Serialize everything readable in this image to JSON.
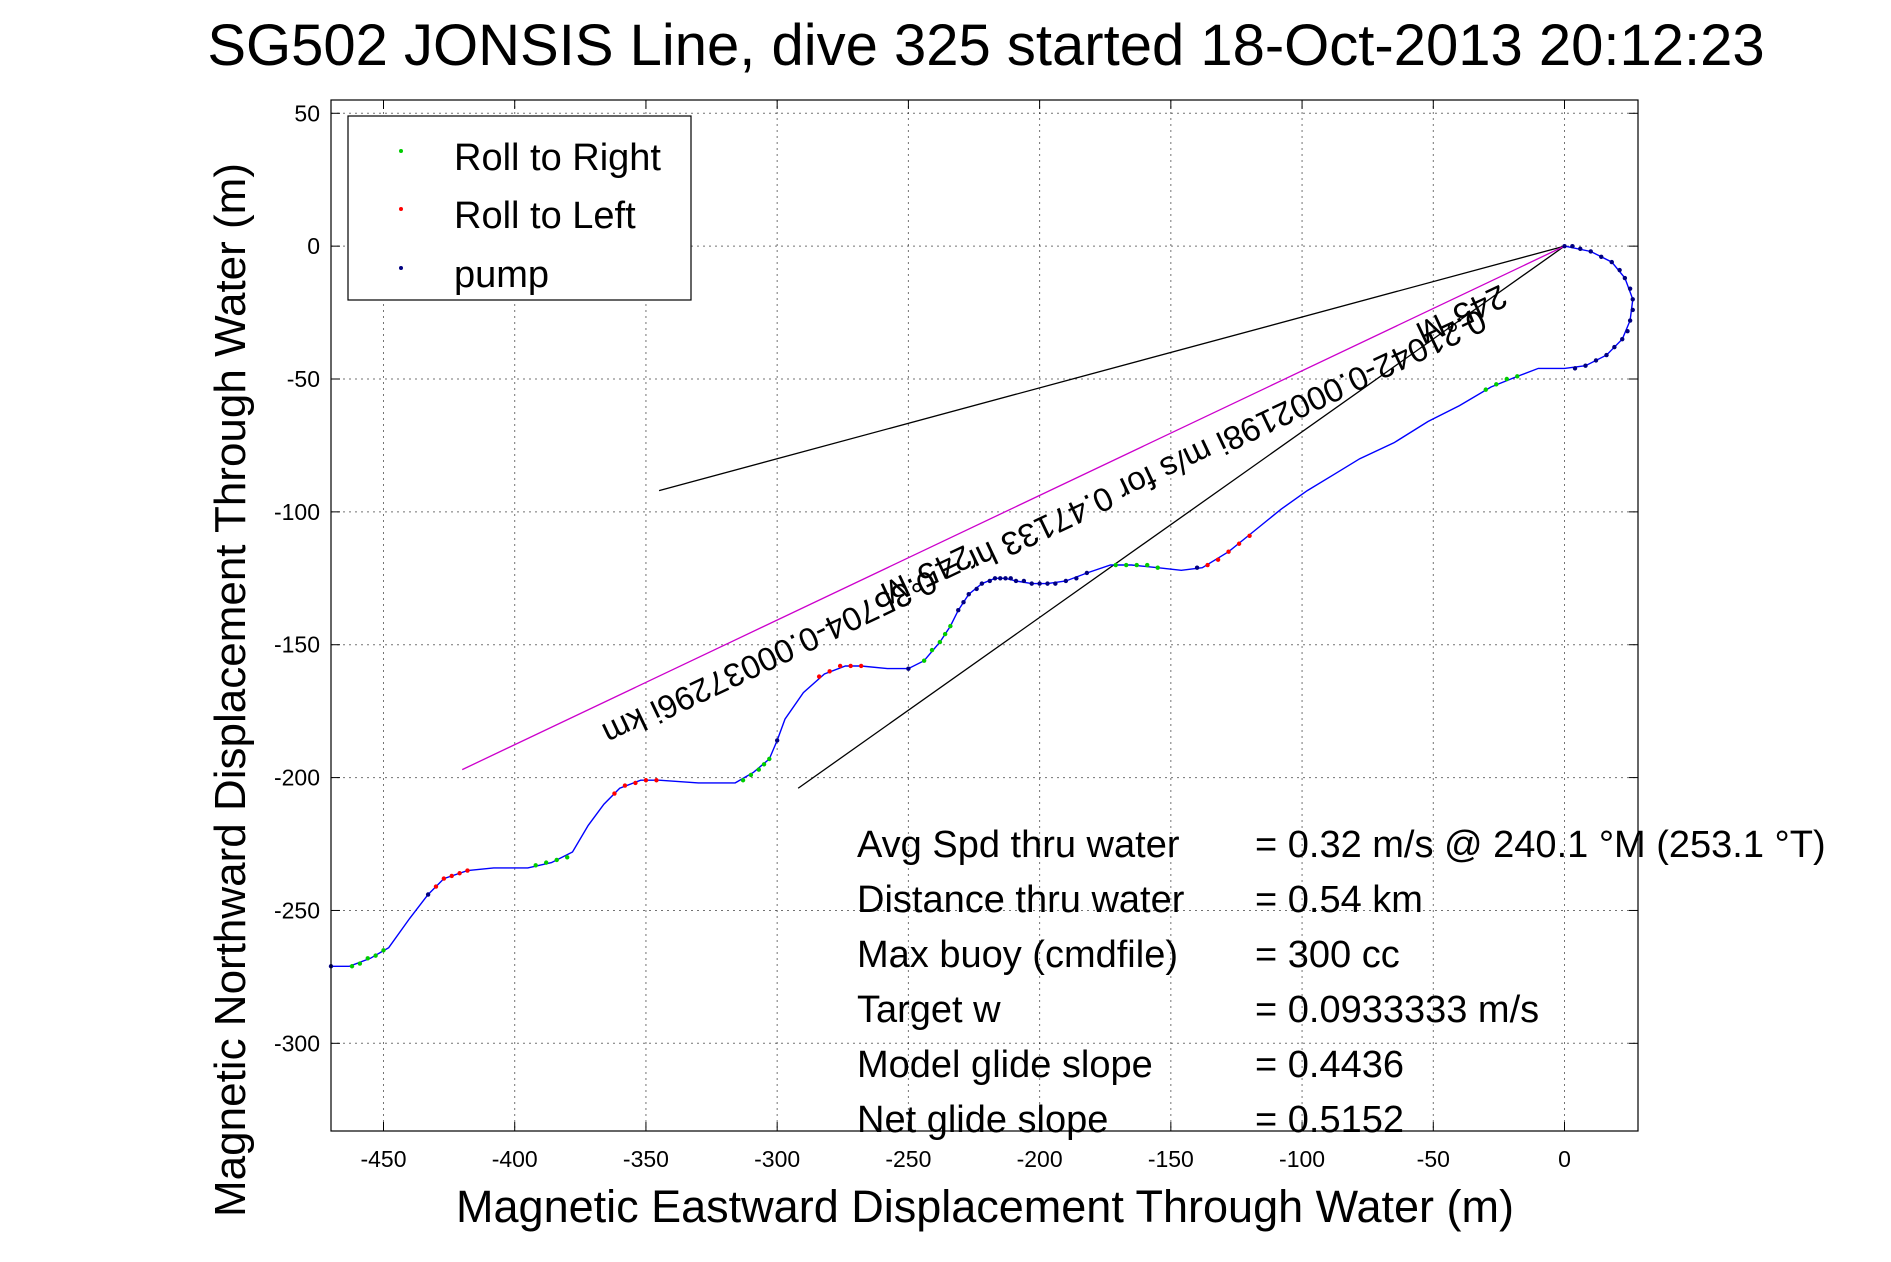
{
  "chart_data": {
    "type": "scatter",
    "title": "SG502 JONSIS Line, dive 325 started 18-Oct-2013 20:12:23",
    "xlabel": "Magnetic Eastward Displacement Through Water (m)",
    "ylabel": "Magnetic Northward Displacement Through Water (m)",
    "xlim": [
      -470,
      28
    ],
    "ylim": [
      -333,
      55
    ],
    "xticks": [
      -450,
      -400,
      -350,
      -300,
      -250,
      -200,
      -150,
      -100,
      -50,
      0
    ],
    "yticks": [
      50,
      0,
      -50,
      -100,
      -150,
      -200,
      -250,
      -300
    ],
    "grid": true,
    "legend": {
      "placement": "top-left",
      "entries": [
        {
          "label": "Roll to Right",
          "color": "#00cc00"
        },
        {
          "label": "Roll to Left",
          "color": "#ff0000"
        },
        {
          "label": "pump",
          "color": "#000080"
        }
      ]
    },
    "track": {
      "color": "#0000ff",
      "points": [
        [
          0,
          0
        ],
        [
          10,
          -2
        ],
        [
          18,
          -6
        ],
        [
          23,
          -12
        ],
        [
          26,
          -20
        ],
        [
          25,
          -28
        ],
        [
          22,
          -35
        ],
        [
          16,
          -41
        ],
        [
          8,
          -45
        ],
        [
          0,
          -46
        ],
        [
          -10,
          -46
        ],
        [
          -18,
          -49
        ],
        [
          -28,
          -53
        ],
        [
          -40,
          -60
        ],
        [
          -52,
          -66
        ],
        [
          -65,
          -74
        ],
        [
          -78,
          -80
        ],
        [
          -88,
          -86
        ],
        [
          -98,
          -92
        ],
        [
          -108,
          -99
        ],
        [
          -118,
          -107
        ],
        [
          -128,
          -115
        ],
        [
          -138,
          -121
        ],
        [
          -146,
          -122
        ],
        [
          -155,
          -121
        ],
        [
          -165,
          -120
        ],
        [
          -173,
          -120
        ],
        [
          -182,
          -123
        ],
        [
          -190,
          -126
        ],
        [
          -197,
          -127
        ],
        [
          -203,
          -127
        ],
        [
          -209,
          -126
        ],
        [
          -213,
          -125
        ],
        [
          -217,
          -125
        ],
        [
          -222,
          -127
        ],
        [
          -227,
          -131
        ],
        [
          -231,
          -137
        ],
        [
          -234,
          -143
        ],
        [
          -238,
          -149
        ],
        [
          -244,
          -156
        ],
        [
          -250,
          -159
        ],
        [
          -258,
          -159
        ],
        [
          -268,
          -158
        ],
        [
          -274,
          -158
        ],
        [
          -282,
          -161
        ],
        [
          -290,
          -168
        ],
        [
          -297,
          -178
        ],
        [
          -300,
          -186
        ],
        [
          -303,
          -193
        ],
        [
          -309,
          -198
        ],
        [
          -316,
          -202
        ],
        [
          -330,
          -202
        ],
        [
          -345,
          -201
        ],
        [
          -352,
          -201
        ],
        [
          -360,
          -204
        ],
        [
          -366,
          -210
        ],
        [
          -372,
          -218
        ],
        [
          -378,
          -228
        ],
        [
          -386,
          -232
        ],
        [
          -395,
          -234
        ],
        [
          -408,
          -234
        ],
        [
          -418,
          -235
        ],
        [
          -427,
          -238
        ],
        [
          -433,
          -244
        ],
        [
          -440,
          -253
        ],
        [
          -448,
          -264
        ],
        [
          -455,
          -268
        ],
        [
          -463,
          -271
        ],
        [
          -470,
          -271
        ]
      ]
    },
    "dots": [
      {
        "x": 0,
        "y": 0,
        "type": "pump"
      },
      {
        "x": 3,
        "y": 0,
        "type": "pump"
      },
      {
        "x": 6,
        "y": -1,
        "type": "pump"
      },
      {
        "x": 10,
        "y": -2,
        "type": "pump"
      },
      {
        "x": 14,
        "y": -4,
        "type": "pump"
      },
      {
        "x": 18,
        "y": -6,
        "type": "pump"
      },
      {
        "x": 21,
        "y": -9,
        "type": "pump"
      },
      {
        "x": 23,
        "y": -12,
        "type": "pump"
      },
      {
        "x": 25,
        "y": -16,
        "type": "pump"
      },
      {
        "x": 26,
        "y": -20,
        "type": "pump"
      },
      {
        "x": 26,
        "y": -24,
        "type": "pump"
      },
      {
        "x": 25,
        "y": -28,
        "type": "pump"
      },
      {
        "x": 24,
        "y": -32,
        "type": "pump"
      },
      {
        "x": 22,
        "y": -35,
        "type": "pump"
      },
      {
        "x": 19,
        "y": -38,
        "type": "pump"
      },
      {
        "x": 16,
        "y": -41,
        "type": "pump"
      },
      {
        "x": 12,
        "y": -43,
        "type": "pump"
      },
      {
        "x": 8,
        "y": -45,
        "type": "pump"
      },
      {
        "x": 4,
        "y": -46,
        "type": "pump"
      },
      {
        "x": -18,
        "y": -49,
        "type": "right"
      },
      {
        "x": -22,
        "y": -50,
        "type": "right"
      },
      {
        "x": -26,
        "y": -52,
        "type": "right"
      },
      {
        "x": -30,
        "y": -54,
        "type": "right"
      },
      {
        "x": -120,
        "y": -109,
        "type": "left"
      },
      {
        "x": -124,
        "y": -112,
        "type": "left"
      },
      {
        "x": -128,
        "y": -115,
        "type": "left"
      },
      {
        "x": -132,
        "y": -118,
        "type": "left"
      },
      {
        "x": -136,
        "y": -120,
        "type": "left"
      },
      {
        "x": -140,
        "y": -121,
        "type": "pump"
      },
      {
        "x": -155,
        "y": -121,
        "type": "right"
      },
      {
        "x": -159,
        "y": -120,
        "type": "right"
      },
      {
        "x": -163,
        "y": -120,
        "type": "right"
      },
      {
        "x": -167,
        "y": -120,
        "type": "right"
      },
      {
        "x": -171,
        "y": -120,
        "type": "right"
      },
      {
        "x": -182,
        "y": -123,
        "type": "pump"
      },
      {
        "x": -186,
        "y": -125,
        "type": "pump"
      },
      {
        "x": -190,
        "y": -126,
        "type": "pump"
      },
      {
        "x": -194,
        "y": -127,
        "type": "pump"
      },
      {
        "x": -197,
        "y": -127,
        "type": "pump"
      },
      {
        "x": -200,
        "y": -127,
        "type": "pump"
      },
      {
        "x": -203,
        "y": -127,
        "type": "pump"
      },
      {
        "x": -206,
        "y": -126,
        "type": "pump"
      },
      {
        "x": -209,
        "y": -126,
        "type": "pump"
      },
      {
        "x": -211,
        "y": -125,
        "type": "pump"
      },
      {
        "x": -213,
        "y": -125,
        "type": "pump"
      },
      {
        "x": -215,
        "y": -125,
        "type": "pump"
      },
      {
        "x": -217,
        "y": -125,
        "type": "pump"
      },
      {
        "x": -219,
        "y": -126,
        "type": "pump"
      },
      {
        "x": -222,
        "y": -127,
        "type": "pump"
      },
      {
        "x": -224,
        "y": -129,
        "type": "pump"
      },
      {
        "x": -227,
        "y": -131,
        "type": "pump"
      },
      {
        "x": -229,
        "y": -134,
        "type": "pump"
      },
      {
        "x": -231,
        "y": -137,
        "type": "pump"
      },
      {
        "x": -234,
        "y": -143,
        "type": "right"
      },
      {
        "x": -236,
        "y": -146,
        "type": "right"
      },
      {
        "x": -238,
        "y": -149,
        "type": "right"
      },
      {
        "x": -241,
        "y": -152,
        "type": "right"
      },
      {
        "x": -244,
        "y": -156,
        "type": "right"
      },
      {
        "x": -250,
        "y": -159,
        "type": "pump"
      },
      {
        "x": -268,
        "y": -158,
        "type": "left"
      },
      {
        "x": -272,
        "y": -158,
        "type": "left"
      },
      {
        "x": -276,
        "y": -158,
        "type": "left"
      },
      {
        "x": -280,
        "y": -160,
        "type": "left"
      },
      {
        "x": -284,
        "y": -162,
        "type": "left"
      },
      {
        "x": -300,
        "y": -186,
        "type": "pump"
      },
      {
        "x": -303,
        "y": -193,
        "type": "right"
      },
      {
        "x": -305,
        "y": -195,
        "type": "right"
      },
      {
        "x": -307,
        "y": -197,
        "type": "right"
      },
      {
        "x": -310,
        "y": -199,
        "type": "right"
      },
      {
        "x": -313,
        "y": -201,
        "type": "right"
      },
      {
        "x": -346,
        "y": -201,
        "type": "left"
      },
      {
        "x": -350,
        "y": -201,
        "type": "left"
      },
      {
        "x": -354,
        "y": -202,
        "type": "left"
      },
      {
        "x": -358,
        "y": -203,
        "type": "left"
      },
      {
        "x": -362,
        "y": -206,
        "type": "left"
      },
      {
        "x": -380,
        "y": -230,
        "type": "right"
      },
      {
        "x": -384,
        "y": -231,
        "type": "right"
      },
      {
        "x": -388,
        "y": -232,
        "type": "right"
      },
      {
        "x": -392,
        "y": -233,
        "type": "right"
      },
      {
        "x": -418,
        "y": -235,
        "type": "left"
      },
      {
        "x": -421,
        "y": -236,
        "type": "left"
      },
      {
        "x": -424,
        "y": -237,
        "type": "left"
      },
      {
        "x": -427,
        "y": -238,
        "type": "left"
      },
      {
        "x": -430,
        "y": -241,
        "type": "left"
      },
      {
        "x": -433,
        "y": -244,
        "type": "pump"
      },
      {
        "x": -450,
        "y": -265,
        "type": "right"
      },
      {
        "x": -453,
        "y": -267,
        "type": "right"
      },
      {
        "x": -456,
        "y": -268,
        "type": "right"
      },
      {
        "x": -459,
        "y": -270,
        "type": "right"
      },
      {
        "x": -462,
        "y": -271,
        "type": "right"
      },
      {
        "x": -470,
        "y": -271,
        "type": "pump"
      }
    ],
    "lines": [
      {
        "kind": "bracket",
        "color": "#000000",
        "points": [
          [
            -345,
            -92
          ],
          [
            0,
            0
          ]
        ]
      },
      {
        "kind": "bracket",
        "color": "#000000",
        "points": [
          [
            -292,
            -204
          ],
          [
            0,
            0
          ]
        ]
      },
      {
        "kind": "heading",
        "color": "#cc00cc",
        "points": [
          [
            -420,
            -197
          ],
          [
            0,
            0
          ]
        ]
      }
    ],
    "rotated_labels": [
      {
        "text": "245°M",
        "x": -41,
        "y": -22
      },
      {
        "text": "0.21042-0.0002198i m/s for 0.47133 hr = 0.35704-0.00037296i km",
        "x": -200,
        "y": -102
      },
      {
        "text": "245°M",
        "x": -245,
        "y": -120
      }
    ],
    "stats": [
      {
        "label": "Avg Spd thru water",
        "value": "=  0.32 m/s @ 240.1 °M (253.1 °T)"
      },
      {
        "label": "Distance thru water",
        "value": "=  0.54 km"
      },
      {
        "label": "Max buoy (cmdfile)",
        "value": "= 300 cc"
      },
      {
        "label": "Target w",
        "value": "= 0.0933333 m/s"
      },
      {
        "label": "Model glide slope",
        "value": "= 0.4436"
      },
      {
        "label": "Net glide slope",
        "value": "= 0.5152"
      }
    ]
  }
}
